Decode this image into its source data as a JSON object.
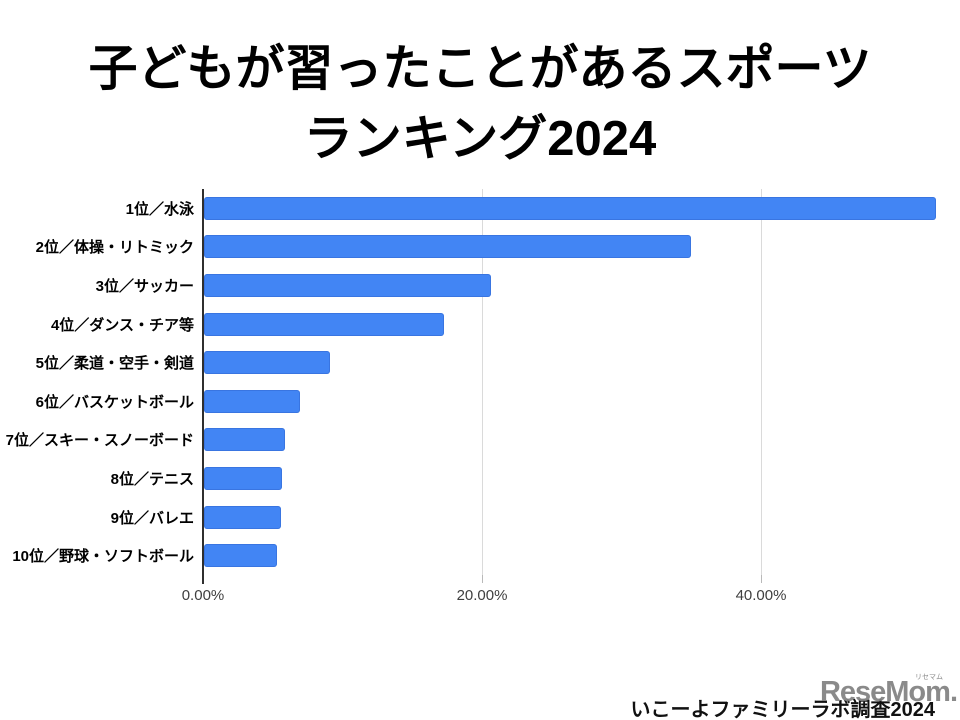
{
  "title": {
    "line1": "子どもが習ったことがあるスポーツ",
    "line2": "ランキング2024"
  },
  "chart_data": {
    "type": "bar",
    "orientation": "horizontal",
    "title": "子どもが習ったことがあるスポーツランキング2024",
    "categories": [
      "1位／水泳",
      "2位／体操・リトミック",
      "3位／サッカー",
      "4位／ダンス・チア等",
      "5位／柔道・空手・剣道",
      "6位／バスケットボール",
      "7位／スキー・スノーボード",
      "8位／テニス",
      "9位／バレエ",
      "10位／野球・ソフトボール"
    ],
    "values": [
      52.5,
      34.9,
      20.6,
      17.2,
      9.0,
      6.9,
      5.8,
      5.6,
      5.5,
      5.2
    ],
    "unit": "%",
    "xlabel": "",
    "ylabel": "",
    "xlim": [
      0,
      52.9
    ],
    "x_ticks": [
      {
        "value": 0,
        "label": "0.00%"
      },
      {
        "value": 20,
        "label": "20.00%"
      },
      {
        "value": 40,
        "label": "40.00%"
      }
    ],
    "grid": true,
    "legend_position": "none",
    "bar_color": "#4285f4"
  },
  "footer": {
    "source_text": "いこーよファミリーラボ調査2024"
  },
  "watermark": {
    "text": "ReseMom",
    "dot": ".",
    "ruby": "リセマム",
    "color": "#8c8c8c"
  }
}
